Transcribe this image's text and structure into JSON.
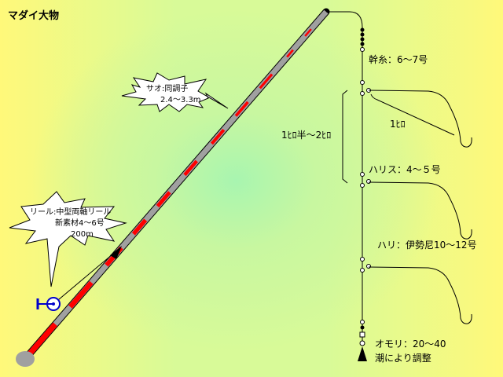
{
  "title": "マダイ大物",
  "rod_label": {
    "line1": "サオ:同調子",
    "line2": "2.4～3.3m"
  },
  "reel_label": {
    "line1": "リール:中型両軸リール",
    "line2": "新素材4～6号",
    "line3": "200m"
  },
  "mainline": "幹糸：6～7号",
  "spacing": "1ﾋﾛ半～2ﾋﾛ",
  "branch": "1ﾋﾛ",
  "harisu": "ハリス：4～５号",
  "hook": "ハリ：伊勢尼10～12号",
  "sinker": {
    "line1": "オモリ：20～40",
    "line2": "潮により調整"
  },
  "colors": {
    "rod_red": "#ff0000",
    "rod_gray": "#a0a0a0",
    "reel_blue": "#0000cc"
  }
}
